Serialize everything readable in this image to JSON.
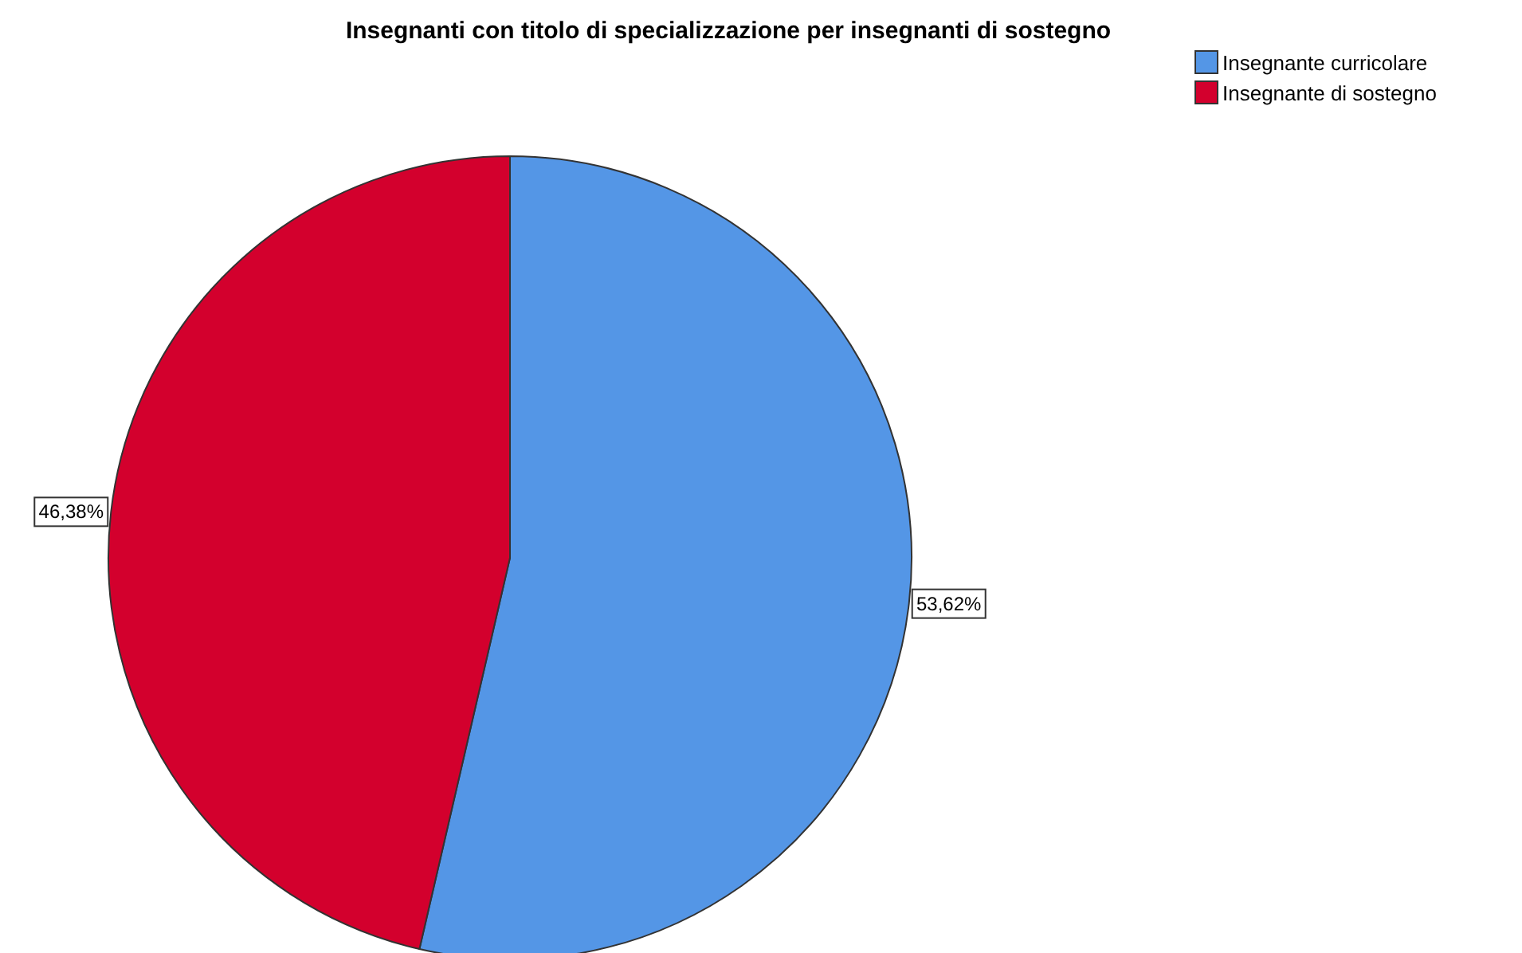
{
  "chart_data": {
    "type": "pie",
    "title": "Insegnanti con titolo di specializzazione per insegnanti di sostegno",
    "categories": [
      "Insegnante curricolare",
      "Insegnante di sostegno"
    ],
    "values": [
      53.62,
      46.38
    ],
    "colors": [
      "#5496e6",
      "#d3002d"
    ],
    "value_labels": [
      "53,62%",
      "46,38%"
    ],
    "legend": "top right"
  }
}
